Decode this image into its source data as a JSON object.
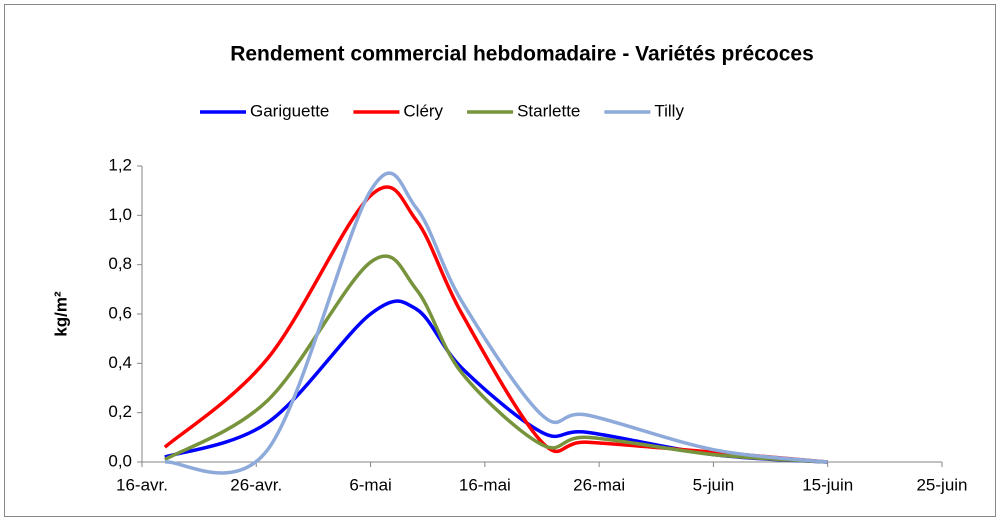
{
  "chart_data": {
    "type": "line",
    "title": "Rendement commercial hebdomadaire  - Variétés précoces",
    "y_label": "kg/m²",
    "x": [
      "04-18",
      "04-27",
      "05-06",
      "05-10",
      "05-14",
      "05-21",
      "05-25",
      "06-05",
      "06-15"
    ],
    "series": [
      {
        "name": "Gariguette",
        "color": "#0000ff",
        "values": [
          0.02,
          0.16,
          0.6,
          0.62,
          0.38,
          0.12,
          0.12,
          0.03,
          0.0
        ]
      },
      {
        "name": "Cléry",
        "color": "#ff0000",
        "values": [
          0.06,
          0.42,
          1.08,
          0.98,
          0.6,
          0.08,
          0.08,
          0.04,
          0.0
        ]
      },
      {
        "name": "Starlette",
        "color": "#77933c",
        "values": [
          0.01,
          0.25,
          0.81,
          0.7,
          0.36,
          0.07,
          0.1,
          0.03,
          0.0
        ]
      },
      {
        "name": "Tilly",
        "color": "#8eaadb",
        "values": [
          0.0,
          0.05,
          1.1,
          1.03,
          0.65,
          0.19,
          0.19,
          0.05,
          0.0
        ]
      }
    ],
    "xlim": [
      "04-16",
      "06-25"
    ],
    "xticks": [
      {
        "value": "04-16",
        "label": "16-avr."
      },
      {
        "value": "04-26",
        "label": "26-avr."
      },
      {
        "value": "05-06",
        "label": "6-mai"
      },
      {
        "value": "05-16",
        "label": "16-mai"
      },
      {
        "value": "05-26",
        "label": "26-mai"
      },
      {
        "value": "06-05",
        "label": "5-juin"
      },
      {
        "value": "06-15",
        "label": "15-juin"
      },
      {
        "value": "06-25",
        "label": "25-juin"
      }
    ],
    "ylim": [
      0,
      1.2
    ],
    "yticks": [
      {
        "value": 0,
        "label": "0,0"
      },
      {
        "value": 0.2,
        "label": "0,2"
      },
      {
        "value": 0.4,
        "label": "0,4"
      },
      {
        "value": 0.6,
        "label": "0,6"
      },
      {
        "value": 0.8,
        "label": "0,8"
      },
      {
        "value": 1.0,
        "label": "1,0"
      },
      {
        "value": 1.2,
        "label": "1,2"
      }
    ],
    "legend": "top",
    "grid": false
  }
}
